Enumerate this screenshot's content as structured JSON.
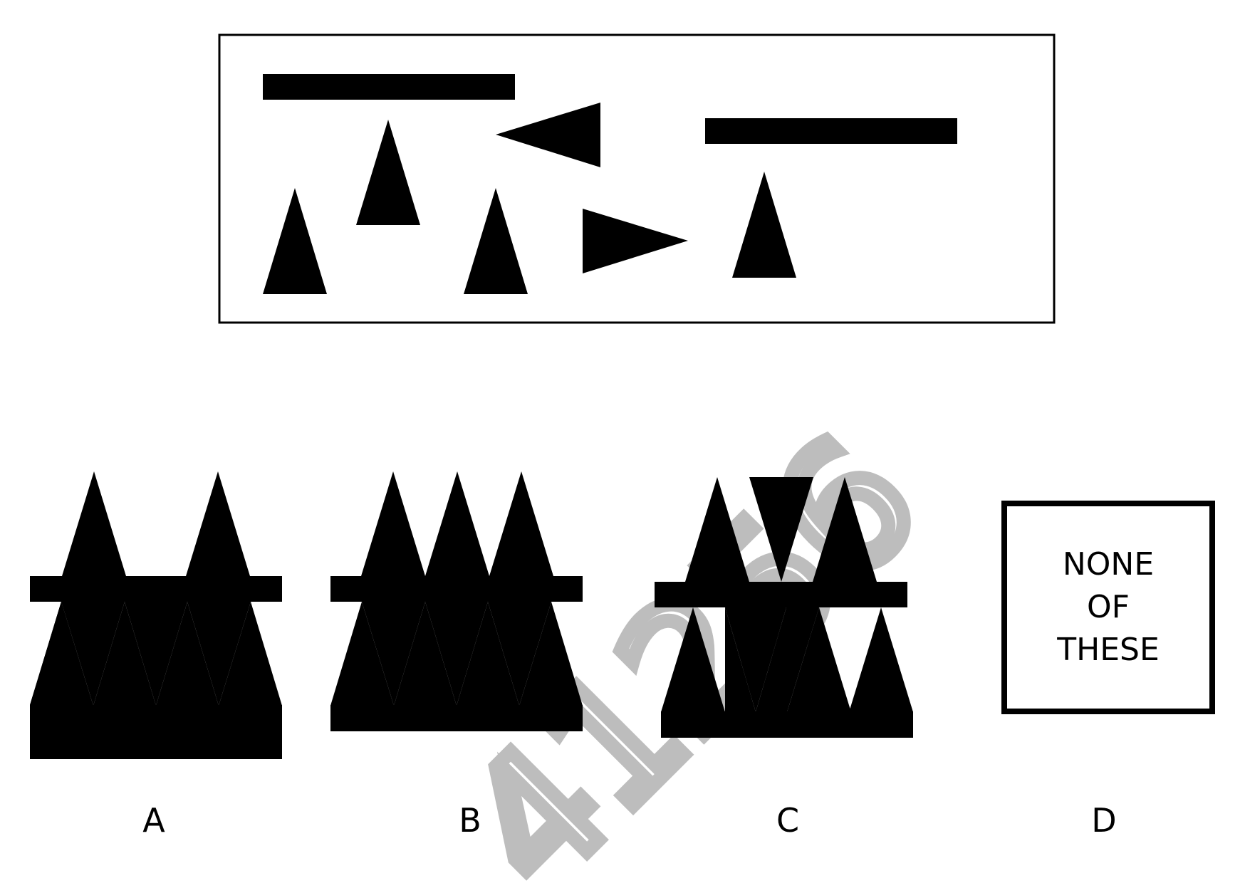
{
  "question": {
    "stimulus": {
      "bars": [
        "horizontal-bar",
        "horizontal-bar"
      ],
      "triangles": [
        "triangle-up",
        "triangle-up",
        "triangle-up",
        "triangle-up",
        "triangle-left",
        "triangle-right"
      ]
    }
  },
  "options": [
    {
      "label": "A"
    },
    {
      "label": "B"
    },
    {
      "label": "C"
    },
    {
      "label": "D",
      "text_lines": [
        "NONE",
        "OF",
        "THESE"
      ]
    }
  ],
  "watermark": {
    "text": "41256",
    "color": "#bdbdbd"
  },
  "colors": {
    "shape": "#000000",
    "background": "#ffffff"
  }
}
